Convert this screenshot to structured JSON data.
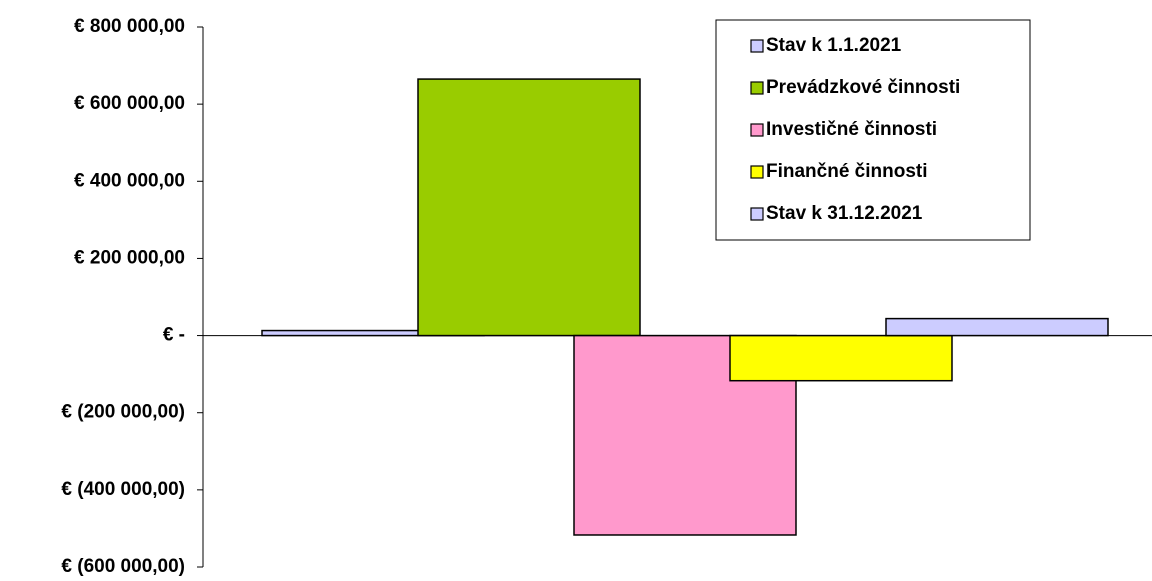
{
  "chart_data": {
    "type": "bar",
    "categories": [
      null
    ],
    "series": [
      {
        "name": "Stav k 1.1.2021",
        "color": "#ccccff",
        "values": [
          13000
        ]
      },
      {
        "name": "Prevádzkové činnosti",
        "color": "#99cc00",
        "values": [
          665000
        ]
      },
      {
        "name": "Investičné činnosti",
        "color": "#ff99cc",
        "values": [
          -517000
        ]
      },
      {
        "name": "Finančné činnosti",
        "color": "#ffff00",
        "values": [
          -117000
        ]
      },
      {
        "name": "Stav k 31.12.2021",
        "color": "#ccccff",
        "values": [
          44000
        ]
      }
    ],
    "ylim": [
      -600000,
      800000
    ],
    "yticks": [
      {
        "value": 800000,
        "label": "€ 800 000,00"
      },
      {
        "value": 600000,
        "label": "€ 600 000,00"
      },
      {
        "value": 400000,
        "label": "€ 400 000,00"
      },
      {
        "value": 200000,
        "label": "€ 200 000,00"
      },
      {
        "value": 0,
        "label": "€ -"
      },
      {
        "value": -200000,
        "label": "€ (200 000,00)"
      },
      {
        "value": -400000,
        "label": "€ (400 000,00)"
      },
      {
        "value": -600000,
        "label": "€ (600 000,00)"
      }
    ],
    "grid": false,
    "legend": "top-right"
  }
}
